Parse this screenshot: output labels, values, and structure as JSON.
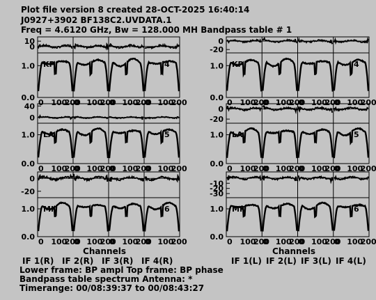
{
  "header": {
    "line1": "Plot file version 8  created 28-OCT-2025 16:40:14",
    "line2": "J0927+3902   BF138C2.UVDATA.1",
    "line3": "Freq = 4.6120 GHz, Bw = 128.000 MH    Bandpass table # 1"
  },
  "footer": {
    "xlabel_left": "Channels",
    "xlabel_right": "Channels",
    "if_labels_left": [
      "IF 1(R)",
      "IF 2(R)",
      "IF 3(R)",
      "IF 4(R)"
    ],
    "if_labels_right": [
      "IF 1(L)",
      "IF 2(L)",
      "IF 3(L)",
      "IF 4(L)"
    ],
    "line1": "Lower frame: BP ampl    Top frame: BP phase",
    "line2": "Bandpass table spectrum      Antenna: *",
    "line3": "Timerange: 00/08:39:37 to 00/08:43:27"
  },
  "colors": {
    "background": "#c4c4c4",
    "ink": "#000000"
  },
  "chart_data": {
    "type": "line",
    "x_tick_labels": [
      "0",
      "100",
      "200"
    ],
    "x_per_if": {
      "channels": 256,
      "ifs": 4
    },
    "panels": [
      {
        "antenna": "KP",
        "antenna_number": "4",
        "left": {
          "phase_ylim": [
            -12,
            18
          ],
          "phase_ticks": [
            "10",
            "0"
          ],
          "amp_ylim": [
            0.0,
            1.4
          ],
          "amp_ticks": [
            "1.0",
            "0.0"
          ]
        },
        "right": {
          "phase_ylim": [
            -28,
            10
          ],
          "phase_ticks": [
            "0",
            "-20"
          ],
          "amp_ylim": [
            0.0,
            1.4
          ],
          "amp_ticks": [
            "1.0",
            "0.0"
          ]
        }
      },
      {
        "antenna": "LA",
        "antenna_number": "5",
        "left": {
          "phase_ylim": [
            -20,
            48
          ],
          "phase_ticks": [
            "40",
            "0"
          ],
          "amp_ylim": [
            0.0,
            1.4
          ],
          "amp_ticks": [
            "1.0",
            "0.0"
          ]
        },
        "right": {
          "phase_ylim": [
            -28,
            10
          ],
          "phase_ticks": [
            "0",
            "-20"
          ],
          "amp_ylim": [
            0.0,
            1.4
          ],
          "amp_ticks": [
            "1.0",
            "0.0"
          ]
        }
      },
      {
        "antenna": "MK",
        "antenna_number": "6",
        "left": {
          "phase_ylim": [
            -30,
            10
          ],
          "phase_ticks": [
            "0",
            "-20"
          ],
          "amp_ylim": [
            0.0,
            1.4
          ],
          "amp_ticks": [
            "1.0",
            "0.0"
          ]
        },
        "right": {
          "phase_ylim": [
            -38,
            12
          ],
          "phase_ticks": [
            "-10",
            "-20",
            "-30"
          ],
          "amp_ylim": [
            0.0,
            1.4
          ],
          "amp_ticks": [
            "1.0",
            "0.0"
          ]
        }
      }
    ],
    "amplitude_profile": {
      "description_values": "per-IF passband: rises from ~0.2 at edge channels to ~1.1 plateau, dips near IF center",
      "edge": 0.2,
      "plateau": 1.1,
      "center_dip": 0.95
    }
  }
}
